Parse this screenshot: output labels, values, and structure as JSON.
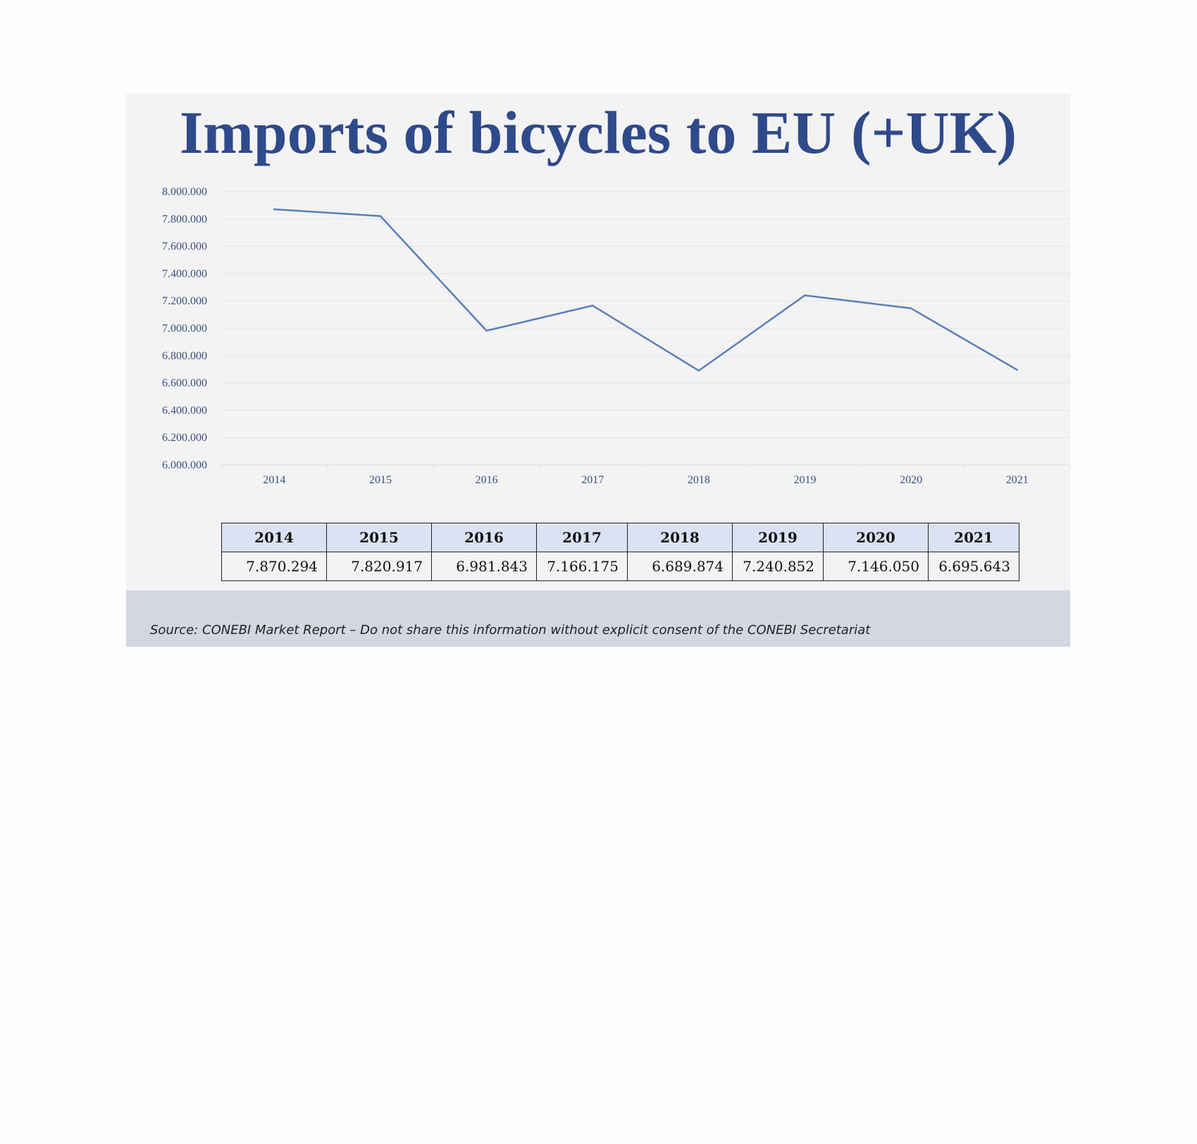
{
  "title": "Imports of bicycles to EU (+UK)",
  "chart_data": {
    "type": "line",
    "title": "Imports of bicycles to EU (+UK)",
    "xlabel": "",
    "ylabel": "",
    "categories": [
      "2014",
      "2015",
      "2016",
      "2017",
      "2018",
      "2019",
      "2020",
      "2021"
    ],
    "values": [
      7870294,
      7820917,
      6981843,
      7166175,
      6689874,
      7240852,
      7146050,
      6695643
    ],
    "ylim": [
      6000000,
      8000000
    ],
    "y_ticks": [
      "6.000.000",
      "6.200.000",
      "6.400.000",
      "6.600.000",
      "6.800.000",
      "7.000.000",
      "7.200.000",
      "7.400.000",
      "7.600.000",
      "7.800.000",
      "8.000.000"
    ],
    "grid": true,
    "line_color": "#5a7fb9"
  },
  "table": {
    "headers": [
      "2014",
      "2015",
      "2016",
      "2017",
      "2018",
      "2019",
      "2020",
      "2021"
    ],
    "values": [
      "7.870.294",
      "7.820.917",
      "6.981.843",
      "7.166.175",
      "6.689.874",
      "7.240.852",
      "7.146.050",
      "6.695.643"
    ]
  },
  "footer": {
    "source": "Source: CONEBI Market Report – Do not share this information without explicit consent of the CONEBI Secretariat"
  },
  "colors": {
    "title": "#2f4a8a",
    "header_fill": "#dbe2f3",
    "footer_fill": "#d3d7e2",
    "background": "#f3f3f4"
  }
}
